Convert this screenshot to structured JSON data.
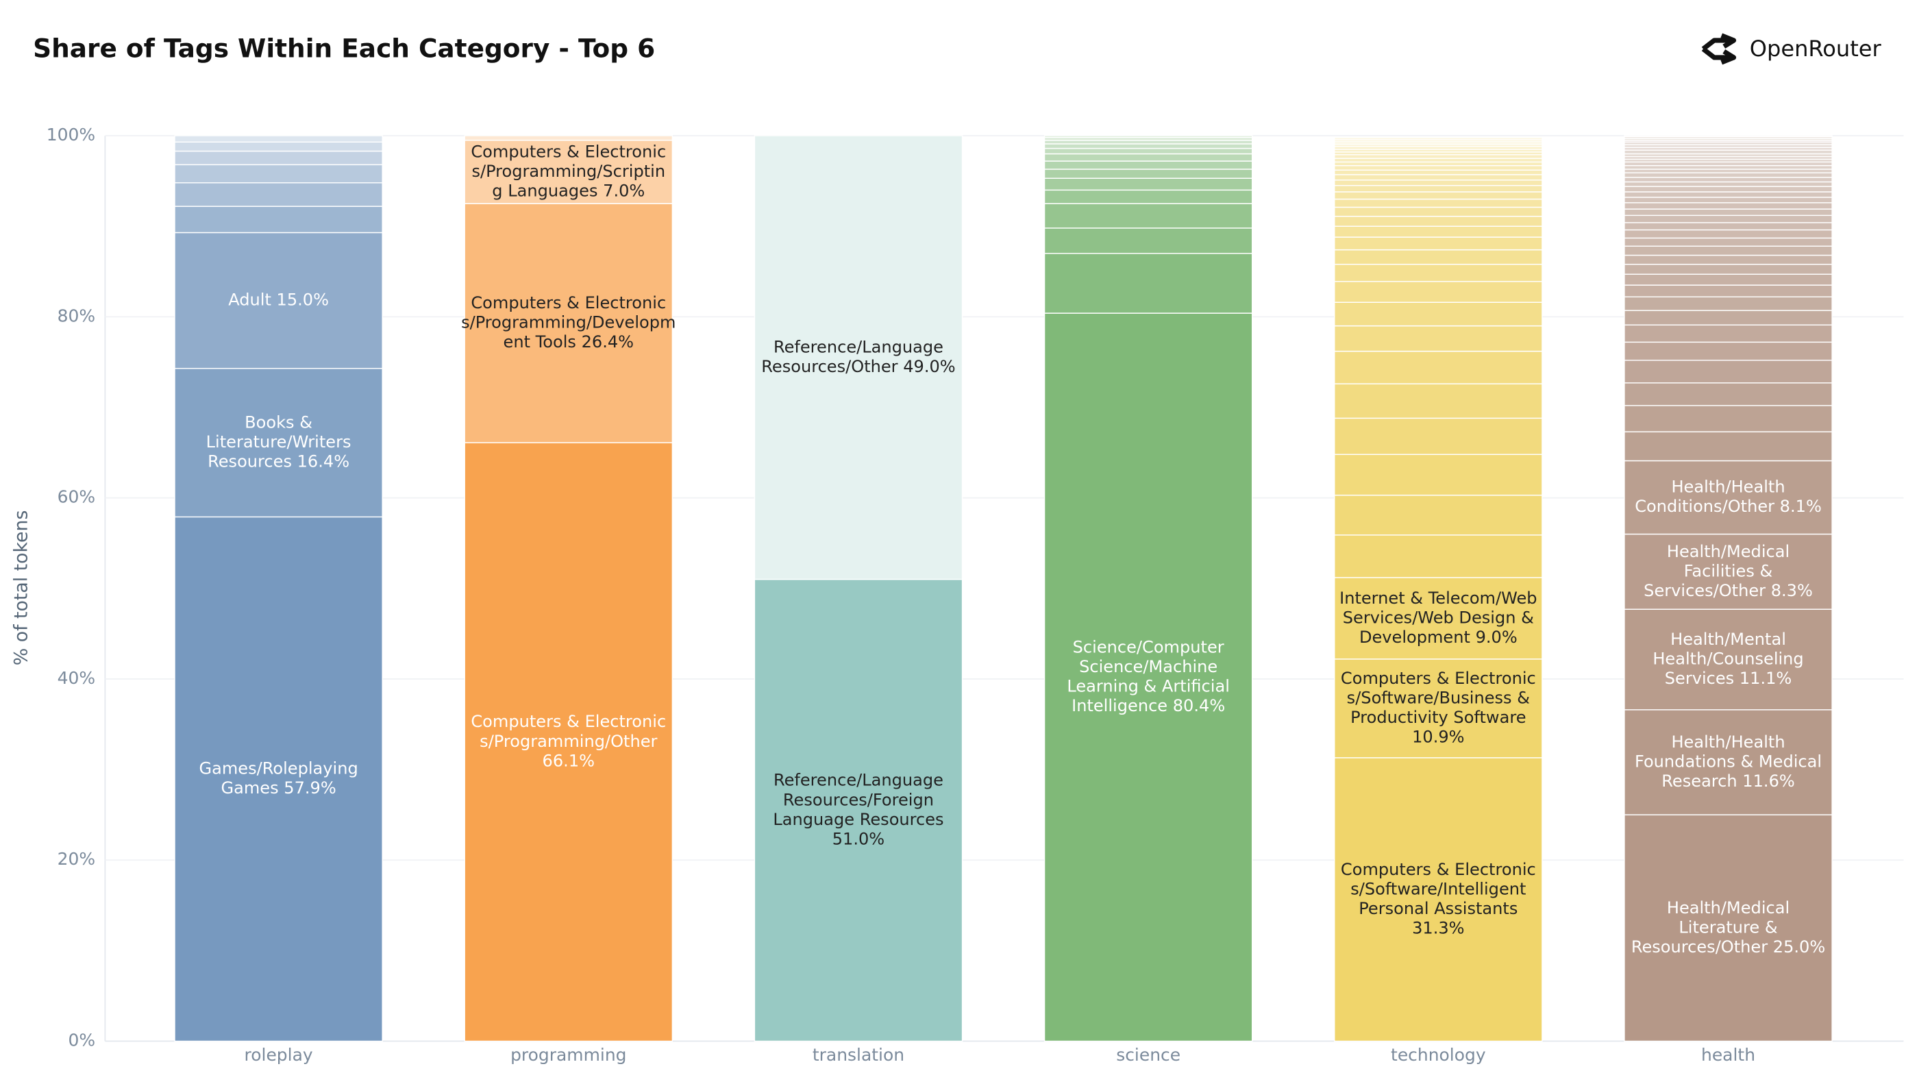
{
  "header": {
    "brand": "OpenRouter"
  },
  "chart_data": {
    "type": "stacked_bar",
    "title": "Share of Tags Within Each Category - Top 6",
    "y_label": "% of total tokens",
    "ylim": [
      0,
      100
    ],
    "yticks": [
      {
        "value": 0,
        "label": "0%"
      },
      {
        "value": 20,
        "label": "20%"
      },
      {
        "value": 40,
        "label": "40%"
      },
      {
        "value": 60,
        "label": "60%"
      },
      {
        "value": 80,
        "label": "80%"
      },
      {
        "value": 100,
        "label": "100%"
      }
    ],
    "grid": true,
    "stacks": [
      {
        "category": "roleplay",
        "color": "#7799bf",
        "segments": [
          {
            "label": "Games/Roleplaying Games 57.9%",
            "value": 57.9,
            "text_color": "#ffffff"
          },
          {
            "label": "Books & Literature/Writers Resources 16.4%",
            "value": 16.4,
            "text_color": "#ffffff"
          },
          {
            "label": "Adult 15.0%",
            "value": 15.0,
            "text_color": "#ffffff"
          },
          {
            "value": 2.9
          },
          {
            "value": 2.6
          },
          {
            "value": 2.0
          },
          {
            "value": 1.5
          },
          {
            "value": 1.0
          },
          {
            "value": 0.7
          }
        ]
      },
      {
        "category": "programming",
        "color": "#f8a34f",
        "segments": [
          {
            "label": "Computers & Electronics/Programming/Other 66.1%",
            "value": 66.1,
            "text_color": "#ffffff"
          },
          {
            "label": "Computers & Electronics/Programming/Development Tools 26.4%",
            "value": 26.4,
            "text_color": "#222222"
          },
          {
            "label": "Computers & Electronics/Programming/Scripting Languages 7.0%",
            "value": 7.0,
            "text_color": "#222222"
          },
          {
            "value": 0.5
          }
        ]
      },
      {
        "category": "translation",
        "color": "#98c9c3",
        "segments": [
          {
            "label": "Reference/Language Resources/Foreign Language Resources 51.0%",
            "value": 51.0,
            "text_color": "#222222"
          },
          {
            "label": "Reference/Language Resources/Other 49.0%",
            "value": 49.0,
            "text_color": "#222222"
          }
        ]
      },
      {
        "category": "science",
        "color": "#80b978",
        "segments": [
          {
            "label": "Science/Computer Science/Machine Learning & Artificial Intelligence 80.4%",
            "value": 80.4,
            "text_color": "#ffffff"
          },
          {
            "value": 6.6
          },
          {
            "value": 2.8
          },
          {
            "value": 2.7
          },
          {
            "value": 1.5
          },
          {
            "value": 1.3
          },
          {
            "value": 1.0
          },
          {
            "value": 0.9
          },
          {
            "value": 0.8
          },
          {
            "value": 0.6
          },
          {
            "value": 0.5
          },
          {
            "value": 0.4
          },
          {
            "value": 0.3
          },
          {
            "value": 0.2
          }
        ]
      },
      {
        "category": "technology",
        "color": "#f0d56b",
        "segments": [
          {
            "label": "Computers & Electronics/Software/Intelligent Personal Assistants 31.3%",
            "value": 31.3,
            "text_color": "#222222"
          },
          {
            "label": "Computers & Electronics/Software/Business & Productivity Software 10.9%",
            "value": 10.9,
            "text_color": "#222222"
          },
          {
            "label": "Internet & Telecom/Web Services/Web Design & Development 9.0%",
            "value": 9.0,
            "text_color": "#222222"
          },
          {
            "value": 4.7
          },
          {
            "value": 4.4
          },
          {
            "value": 4.5
          },
          {
            "value": 4.0
          },
          {
            "value": 3.8
          },
          {
            "value": 3.6
          },
          {
            "value": 2.8
          },
          {
            "value": 2.6
          },
          {
            "value": 2.3
          },
          {
            "value": 1.9
          },
          {
            "value": 1.6
          },
          {
            "value": 1.4
          },
          {
            "value": 1.2
          },
          {
            "value": 1.1
          },
          {
            "value": 1.0
          },
          {
            "value": 0.9
          },
          {
            "value": 0.8
          },
          {
            "value": 0.7
          },
          {
            "value": 0.6
          },
          {
            "value": 0.6
          },
          {
            "value": 0.5
          },
          {
            "value": 0.5
          },
          {
            "value": 0.4
          },
          {
            "value": 0.4
          },
          {
            "value": 0.4
          },
          {
            "value": 0.3
          },
          {
            "value": 0.3
          },
          {
            "value": 0.3
          },
          {
            "value": 0.2
          },
          {
            "value": 0.2
          },
          {
            "value": 0.2
          },
          {
            "value": 0.2
          },
          {
            "value": 0.2
          }
        ]
      },
      {
        "category": "health",
        "color": "#b59888",
        "segments": [
          {
            "label": "Health/Medical Literature & Resources/Other 25.0%",
            "value": 25.0,
            "text_color": "#ffffff"
          },
          {
            "label": "Health/Health Foundations & Medical Research 11.6%",
            "value": 11.6,
            "text_color": "#ffffff"
          },
          {
            "label": "Health/Mental Health/Counseling Services 11.1%",
            "value": 11.1,
            "text_color": "#ffffff"
          },
          {
            "label": "Health/Medical Facilities & Services/Other 8.3%",
            "value": 8.3,
            "text_color": "#ffffff"
          },
          {
            "label": "Health/Health Conditions/Other 8.1%",
            "value": 8.1,
            "text_color": "#ffffff"
          },
          {
            "value": 3.2
          },
          {
            "value": 2.9
          },
          {
            "value": 2.5
          },
          {
            "value": 2.5
          },
          {
            "value": 2.0
          },
          {
            "value": 1.9
          },
          {
            "value": 1.6
          },
          {
            "value": 1.5
          },
          {
            "value": 1.3
          },
          {
            "value": 1.2
          },
          {
            "value": 1.1
          },
          {
            "value": 1.0
          },
          {
            "value": 1.0
          },
          {
            "value": 0.9
          },
          {
            "value": 0.9
          },
          {
            "value": 0.8
          },
          {
            "value": 0.8
          },
          {
            "value": 0.7
          },
          {
            "value": 0.7
          },
          {
            "value": 0.6
          },
          {
            "value": 0.6
          },
          {
            "value": 0.6
          },
          {
            "value": 0.5
          },
          {
            "value": 0.5
          },
          {
            "value": 0.5
          },
          {
            "value": 0.4
          },
          {
            "value": 0.4
          },
          {
            "value": 0.4
          },
          {
            "value": 0.3
          },
          {
            "value": 0.3
          },
          {
            "value": 0.3
          },
          {
            "value": 0.4
          },
          {
            "value": 0.3
          },
          {
            "value": 0.3
          },
          {
            "value": 0.3
          },
          {
            "value": 0.2
          },
          {
            "value": 0.2
          },
          {
            "value": 0.2
          },
          {
            "value": 0.1
          }
        ]
      }
    ]
  }
}
